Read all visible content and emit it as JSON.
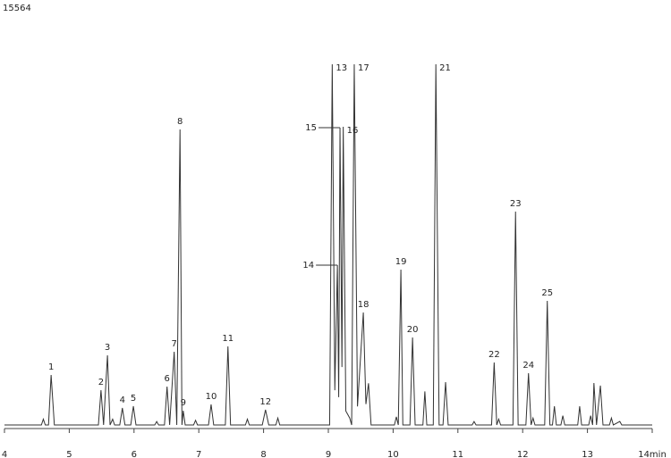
{
  "chart_data": {
    "type": "line",
    "title": 15564,
    "color": "#333333",
    "x": [
      4.0,
      4.57,
      4.6,
      4.63,
      4.68,
      4.72,
      4.77,
      5.45,
      5.49,
      5.53,
      5.59,
      5.63,
      5.67,
      5.7,
      5.78,
      5.82,
      5.86,
      5.95,
      5.99,
      6.03,
      6.32,
      6.35,
      6.38,
      6.47,
      6.51,
      6.55,
      6.62,
      6.66,
      6.71,
      6.74,
      6.76,
      6.79,
      6.92,
      6.95,
      6.98,
      7.15,
      7.19,
      7.23,
      7.41,
      7.45,
      7.49,
      7.72,
      7.75,
      7.78,
      7.98,
      8.03,
      8.08,
      8.19,
      8.22,
      8.25,
      9.02,
      9.06,
      9.1,
      9.14,
      9.16,
      9.18,
      9.21,
      9.23,
      9.27,
      9.33,
      9.36,
      9.4,
      9.45,
      9.54,
      9.58,
      9.62,
      9.66,
      10.02,
      10.05,
      10.08,
      10.12,
      10.15,
      10.26,
      10.3,
      10.34,
      10.46,
      10.49,
      10.52,
      10.62,
      10.66,
      10.71,
      10.77,
      10.81,
      10.85,
      11.22,
      11.25,
      11.28,
      11.52,
      11.56,
      11.6,
      11.63,
      11.66,
      11.85,
      11.89,
      11.93,
      12.05,
      12.09,
      12.13,
      12.16,
      12.19,
      12.34,
      12.38,
      12.42,
      12.46,
      12.49,
      12.52,
      12.59,
      12.62,
      12.65,
      12.85,
      12.88,
      12.91,
      13.02,
      13.05,
      13.08,
      13.1,
      13.14,
      13.2,
      13.24,
      13.34,
      13.37,
      13.4,
      13.5,
      13.53,
      14.0
    ],
    "values": [
      0,
      0,
      250,
      0,
      0,
      2158,
      0,
      0,
      1502,
      0,
      3005,
      0,
      250,
      0,
      0,
      732,
      0,
      0,
      809,
      0,
      0,
      150,
      0,
      0,
      1657,
      0,
      3159,
      0,
      12753,
      0,
      616,
      0,
      0,
      200,
      0,
      0,
      886,
      0,
      0,
      3390,
      0,
      0,
      250,
      0,
      0,
      655,
      0,
      0,
      300,
      0,
      0,
      15564,
      1500,
      6896,
      1200,
      12830,
      2500,
      12868,
      600,
      300,
      0,
      15564,
      800,
      4855,
      900,
      1800,
      0,
      0,
      350,
      0,
      6704,
      0,
      0,
      3776,
      0,
      0,
      1450,
      0,
      0,
      15564,
      0,
      0,
      1850,
      0,
      0,
      150,
      0,
      0,
      2697,
      0,
      250,
      0,
      0,
      9209,
      0,
      0,
      2235,
      0,
      300,
      0,
      0,
      5356,
      0,
      0,
      809,
      0,
      0,
      400,
      0,
      0,
      809,
      0,
      0,
      400,
      0,
      1810,
      0,
      1700,
      0,
      0,
      300,
      0,
      150,
      0,
      0
    ],
    "xlim": [
      4,
      14
    ],
    "ylim": [
      0,
      15564
    ],
    "xticks": [
      4,
      5,
      6,
      7,
      8,
      9,
      10,
      11,
      12,
      13,
      {
        "value": 14,
        "label": "14min"
      }
    ],
    "annotations": [
      {
        "text": "1",
        "x": 4.72,
        "y": 2158
      },
      {
        "text": "2",
        "x": 5.49,
        "y": 1502
      },
      {
        "text": "3",
        "x": 5.59,
        "y": 3005
      },
      {
        "text": "4",
        "x": 5.82,
        "y": 732
      },
      {
        "text": "5",
        "x": 5.99,
        "y": 809
      },
      {
        "text": "6",
        "x": 6.51,
        "y": 1657
      },
      {
        "text": "7",
        "x": 6.62,
        "y": 3159
      },
      {
        "text": "8",
        "x": 6.71,
        "y": 12753
      },
      {
        "text": "9",
        "x": 6.76,
        "y": 616
      },
      {
        "text": "10",
        "x": 7.19,
        "y": 886
      },
      {
        "text": "11",
        "x": 7.45,
        "y": 3390
      },
      {
        "text": "12",
        "x": 8.03,
        "y": 655
      },
      {
        "text": "13",
        "x": 9.06,
        "y": 15564,
        "position": "right"
      },
      {
        "text": "14",
        "x": 9.14,
        "y": 6896,
        "position": "left"
      },
      {
        "text": "15",
        "x": 9.18,
        "y": 12830,
        "position": "left"
      },
      {
        "text": "16",
        "x": 9.23,
        "y": 12868,
        "position": "right"
      },
      {
        "text": "17",
        "x": 9.4,
        "y": 15564,
        "position": "right"
      },
      {
        "text": "18",
        "x": 9.54,
        "y": 4855
      },
      {
        "text": "19",
        "x": 10.12,
        "y": 6704
      },
      {
        "text": "20",
        "x": 10.3,
        "y": 3776
      },
      {
        "text": "21",
        "x": 10.66,
        "y": 15564,
        "position": "right"
      },
      {
        "text": "22",
        "x": 11.56,
        "y": 2697
      },
      {
        "text": "23",
        "x": 11.89,
        "y": 9209
      },
      {
        "text": "24",
        "x": 12.09,
        "y": 2235
      },
      {
        "text": "25",
        "x": 12.38,
        "y": 5356
      }
    ]
  }
}
